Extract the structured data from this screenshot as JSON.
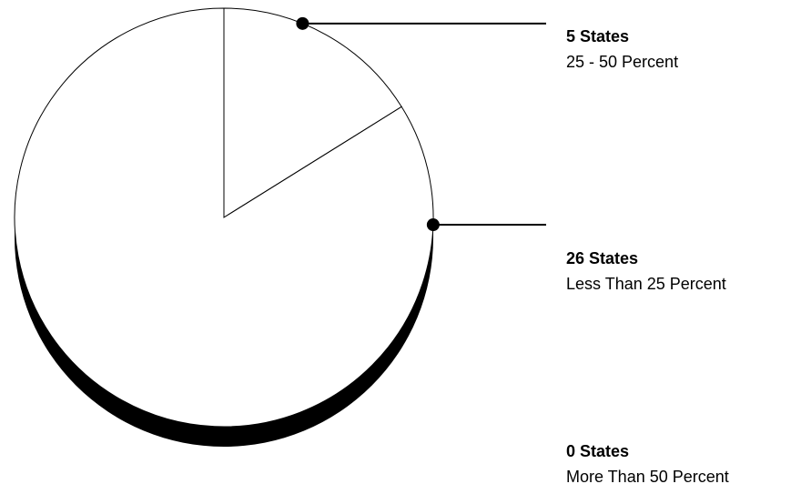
{
  "chart_data": {
    "type": "pie",
    "categories": [
      "25 - 50 Percent",
      "Less Than 25 Percent",
      "More Than 50 Percent"
    ],
    "values": [
      5,
      26,
      0
    ],
    "slices": [
      {
        "count_label": "5 States",
        "range_label": "25 - 50 Percent",
        "value": 5
      },
      {
        "count_label": "26 States",
        "range_label": "Less Than 25 Percent",
        "value": 26
      },
      {
        "count_label": "0 States",
        "range_label": "More Than 50 Percent",
        "value": 0
      }
    ],
    "legend_placement": "right",
    "colors": {
      "fill": "#ffffff",
      "stroke": "#000000",
      "shadow": "#000000"
    }
  }
}
